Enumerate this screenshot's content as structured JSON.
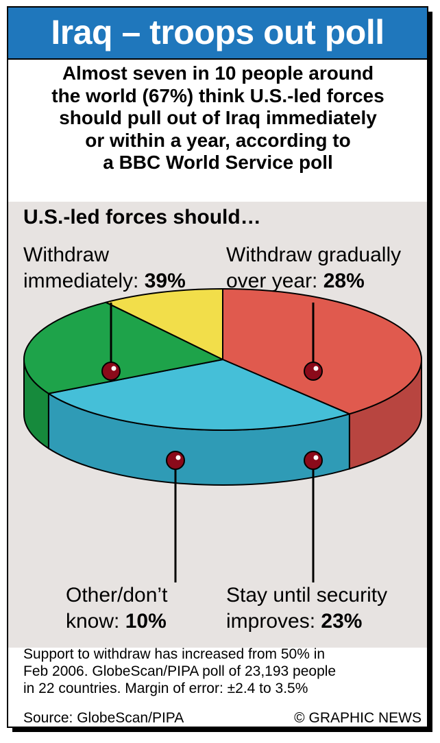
{
  "header": {
    "title": "Iraq – troops out poll"
  },
  "intro": {
    "lines": [
      "Almost seven in 10 people around",
      "the world (67%) think U.S.-led forces",
      "should pull out of Iraq immediately",
      "or within a year, according to",
      "a BBC World Service poll"
    ]
  },
  "chart_data": {
    "type": "pie",
    "title": "U.S.-led forces should…",
    "slices": [
      {
        "label_line1": "Withdraw",
        "label_line2": "immediately:",
        "value_text": "39%",
        "value": 39,
        "color": "#e05a4e",
        "side_color": "#b84540"
      },
      {
        "label_line1": "Withdraw gradually",
        "label_line2": "over year:",
        "value_text": "28%",
        "value": 28,
        "color": "#45bfd8",
        "side_color": "#2f9bb6"
      },
      {
        "label_line1": "Stay until security",
        "label_line2": "improves:",
        "value_text": "23%",
        "value": 23,
        "color": "#1ea34a",
        "side_color": "#168a3c"
      },
      {
        "label_line1": "Other/don’t",
        "label_line2": "know:",
        "value_text": "10%",
        "value": 10,
        "color": "#f2de4a",
        "side_color": "#c8b53e"
      }
    ]
  },
  "footnote": {
    "lines": [
      "Support to withdraw has increased from 50% in",
      "Feb 2006. GlobeScan/PIPA poll of 23,193 people",
      "in 22 countries. Margin of error: ±2.4 to 3.5%"
    ]
  },
  "source": "Source: GlobeScan/PIPA",
  "credit": "© GRAPHIC NEWS",
  "colors": {
    "header_bg": "#1f77bc",
    "panel_bg": "#e7e3e1",
    "marker": "#8b0a1a"
  }
}
